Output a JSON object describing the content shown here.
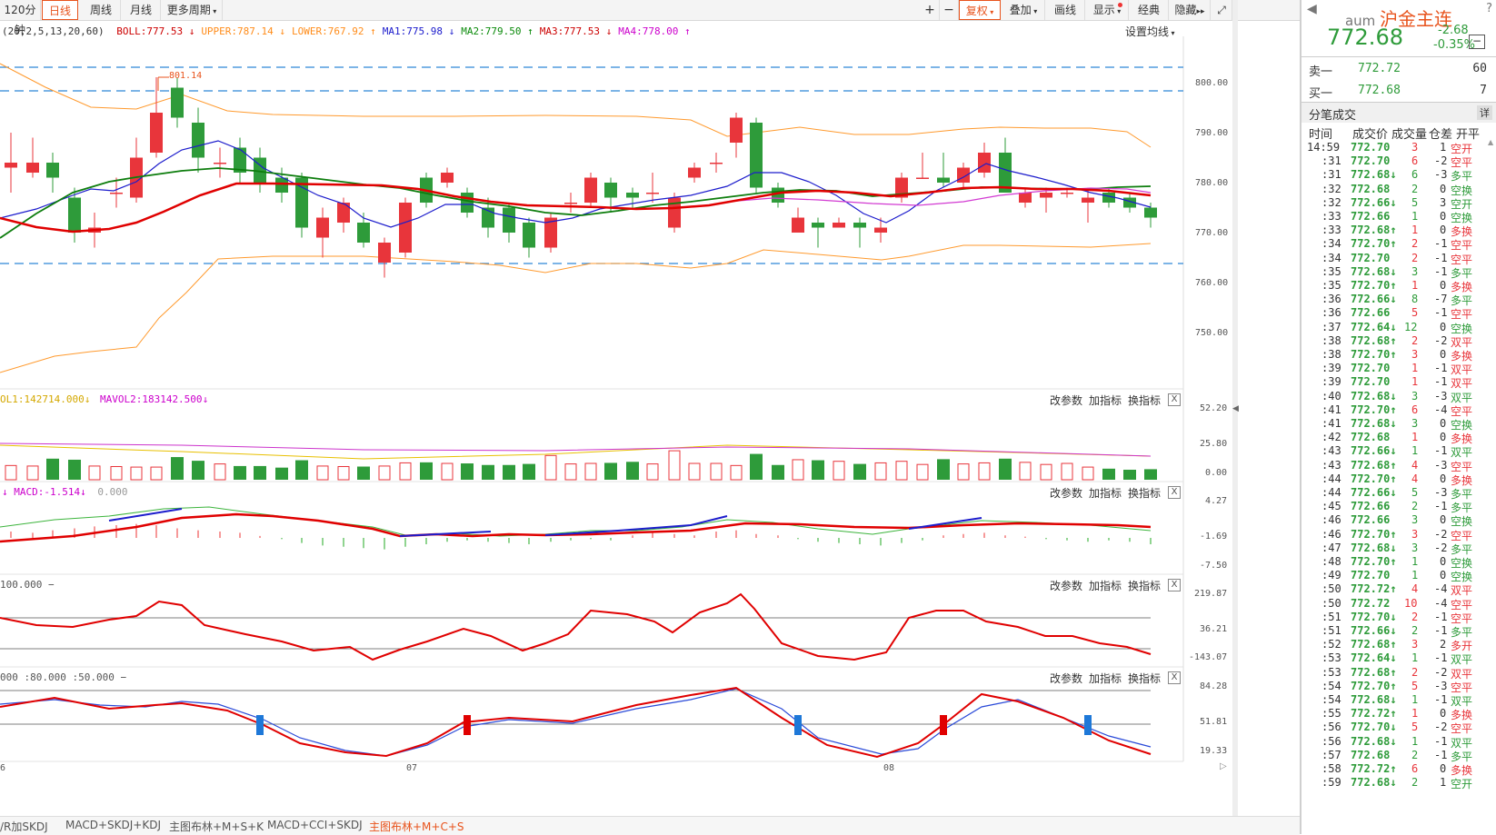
{
  "toolbar": {
    "period_partial": "120分钟",
    "tabs": [
      "日线",
      "周线",
      "月线"
    ],
    "active_tab": "日线",
    "more_periods": "更多周期",
    "right_buttons": [
      "复权",
      "叠加",
      "画线",
      "显示",
      "经典",
      "隐藏"
    ]
  },
  "main_indicator": {
    "params": "(20,2,5,13,20,60)",
    "items": [
      {
        "label": "BOLL:777.53",
        "arrow": "↓",
        "color": "#cc0000"
      },
      {
        "label": "UPPER:787.14",
        "arrow": "↓",
        "color": "#ff8c1a"
      },
      {
        "label": "LOWER:767.92",
        "arrow": "↑",
        "color": "#ff8c1a"
      },
      {
        "label": "MA1:775.98",
        "arrow": "↓",
        "color": "#1a1acc"
      },
      {
        "label": "MA2:779.50",
        "arrow": "↑",
        "color": "#0a8a0a"
      },
      {
        "label": "MA3:777.53",
        "arrow": "↓",
        "color": "#cc0000"
      },
      {
        "label": "MA4:778.00",
        "arrow": "↑",
        "color": "#cc00cc"
      }
    ],
    "settings": "设置均线",
    "price_axis": [
      "800.00",
      "790.00",
      "780.00",
      "770.00",
      "760.00",
      "750.00"
    ],
    "max_marker": "801.14"
  },
  "panels": {
    "buttons": [
      "改参数",
      "加指标",
      "换指标"
    ],
    "close": "X",
    "vol": {
      "legend": [
        {
          "label": "OL1:142714.000",
          "arrow": "↓",
          "color": "#d4a800"
        },
        {
          "label": "MAVOL2:183142.500",
          "arrow": "↓",
          "color": "#cc00cc"
        }
      ],
      "axis": [
        "52.20",
        "25.80",
        "0.00"
      ]
    },
    "macd": {
      "legend": [
        {
          "label": "MACD:-1.514",
          "arrow": "↓",
          "color": "#cc00cc"
        },
        {
          "label": "0.000",
          "arrow": "",
          "color": "#999999"
        }
      ],
      "lead_arrow": "↓",
      "axis": [
        "4.27",
        "-1.69",
        "-7.50"
      ]
    },
    "cci": {
      "legend_text": "100.000",
      "axis": [
        "219.87",
        "36.21",
        "-143.07"
      ]
    },
    "kdj": {
      "legend_text": "000  :80.000  :50.000",
      "axis": [
        "84.28",
        "51.81",
        "19.33"
      ]
    }
  },
  "date_labels": [
    "6",
    "07",
    "08"
  ],
  "bottom_tabs": [
    "/R加SKDJ",
    "MACD+SKDJ+KDJ",
    "主图布林+M+S+K",
    "MACD+CCI+SKDJ",
    "主图布林+M+C+S"
  ],
  "active_bottom_tab": "主图布林+M+C+S",
  "quote": {
    "code": "aum",
    "name": "沪金主连",
    "price": "772.68",
    "change": "-2.68",
    "change_pct": "-0.35%",
    "sell_label": "卖一",
    "sell_price": "772.72",
    "sell_vol": "60",
    "buy_label": "买一",
    "buy_price": "772.68",
    "buy_vol": "7"
  },
  "trades": {
    "title": "分笔成交",
    "detail": "详",
    "headers": [
      "时间",
      "成交价",
      "成交量",
      "仓差",
      "开平"
    ],
    "rows": [
      [
        "14:59",
        "772.70",
        "",
        "3",
        "1",
        "空开",
        "r"
      ],
      [
        ":31",
        "772.70",
        "",
        "6",
        "-2",
        "空平",
        "r"
      ],
      [
        ":31",
        "772.68",
        "↓",
        "6",
        "-3",
        "多平",
        "g"
      ],
      [
        ":32",
        "772.68",
        "",
        "2",
        "0",
        "空换",
        "g"
      ],
      [
        ":32",
        "772.66",
        "↓",
        "5",
        "3",
        "空开",
        "g"
      ],
      [
        ":33",
        "772.66",
        "",
        "1",
        "0",
        "空换",
        "g"
      ],
      [
        ":33",
        "772.68",
        "↑",
        "1",
        "0",
        "多换",
        "r"
      ],
      [
        ":34",
        "772.70",
        "↑",
        "2",
        "-1",
        "空平",
        "r"
      ],
      [
        ":34",
        "772.70",
        "",
        "2",
        "-1",
        "空平",
        "r"
      ],
      [
        ":35",
        "772.68",
        "↓",
        "3",
        "-1",
        "多平",
        "g"
      ],
      [
        ":35",
        "772.70",
        "↑",
        "1",
        "0",
        "多换",
        "r"
      ],
      [
        ":36",
        "772.66",
        "↓",
        "8",
        "-7",
        "多平",
        "g"
      ],
      [
        ":36",
        "772.66",
        "",
        "5",
        "-1",
        "空平",
        "r"
      ],
      [
        ":37",
        "772.64",
        "↓",
        "12",
        "0",
        "空换",
        "g"
      ],
      [
        ":38",
        "772.68",
        "↑",
        "2",
        "-2",
        "双平",
        "r"
      ],
      [
        ":38",
        "772.70",
        "↑",
        "3",
        "0",
        "多换",
        "r"
      ],
      [
        ":39",
        "772.70",
        "",
        "1",
        "-1",
        "双平",
        "r"
      ],
      [
        ":39",
        "772.70",
        "",
        "1",
        "-1",
        "双平",
        "r"
      ],
      [
        ":40",
        "772.68",
        "↓",
        "3",
        "-3",
        "双平",
        "g"
      ],
      [
        ":41",
        "772.70",
        "↑",
        "6",
        "-4",
        "空平",
        "r"
      ],
      [
        ":41",
        "772.68",
        "↓",
        "3",
        "0",
        "空换",
        "g"
      ],
      [
        ":42",
        "772.68",
        "",
        "1",
        "0",
        "多换",
        "r"
      ],
      [
        ":43",
        "772.66",
        "↓",
        "1",
        "-1",
        "双平",
        "g"
      ],
      [
        ":43",
        "772.68",
        "↑",
        "4",
        "-3",
        "空平",
        "r"
      ],
      [
        ":44",
        "772.70",
        "↑",
        "4",
        "0",
        "多换",
        "r"
      ],
      [
        ":44",
        "772.66",
        "↓",
        "5",
        "-3",
        "多平",
        "g"
      ],
      [
        ":45",
        "772.66",
        "",
        "2",
        "-1",
        "多平",
        "g"
      ],
      [
        ":46",
        "772.66",
        "",
        "3",
        "0",
        "空换",
        "g"
      ],
      [
        ":46",
        "772.70",
        "↑",
        "3",
        "-2",
        "空平",
        "r"
      ],
      [
        ":47",
        "772.68",
        "↓",
        "3",
        "-2",
        "多平",
        "g"
      ],
      [
        ":48",
        "772.70",
        "↑",
        "1",
        "0",
        "空换",
        "g"
      ],
      [
        ":49",
        "772.70",
        "",
        "1",
        "0",
        "空换",
        "g"
      ],
      [
        ":50",
        "772.72",
        "↑",
        "4",
        "-4",
        "双平",
        "r"
      ],
      [
        ":50",
        "772.72",
        "",
        "10",
        "-4",
        "空平",
        "r"
      ],
      [
        ":51",
        "772.70",
        "↓",
        "2",
        "-1",
        "空平",
        "r"
      ],
      [
        ":51",
        "772.66",
        "↓",
        "2",
        "-1",
        "多平",
        "g"
      ],
      [
        ":52",
        "772.68",
        "↑",
        "3",
        "2",
        "多开",
        "r"
      ],
      [
        ":53",
        "772.64",
        "↓",
        "1",
        "-1",
        "双平",
        "g"
      ],
      [
        ":53",
        "772.68",
        "↑",
        "2",
        "-2",
        "双平",
        "r"
      ],
      [
        ":54",
        "772.70",
        "↑",
        "5",
        "-3",
        "空平",
        "r"
      ],
      [
        ":54",
        "772.68",
        "↓",
        "1",
        "-1",
        "双平",
        "g"
      ],
      [
        ":55",
        "772.72",
        "↑",
        "1",
        "0",
        "多换",
        "r"
      ],
      [
        ":56",
        "772.70",
        "↓",
        "5",
        "-2",
        "空平",
        "r"
      ],
      [
        ":56",
        "772.68",
        "↓",
        "1",
        "-1",
        "双平",
        "g"
      ],
      [
        ":57",
        "772.68",
        "",
        "2",
        "-1",
        "多平",
        "g"
      ],
      [
        ":58",
        "772.72",
        "↑",
        "6",
        "0",
        "多换",
        "r"
      ],
      [
        ":59",
        "772.68",
        "↓",
        "2",
        "1",
        "空开",
        "g"
      ]
    ]
  },
  "colors": {
    "up": "#e8353b",
    "down": "#2e9b3a",
    "accent": "#e8531c",
    "ma_red": "#e00000",
    "boll_band": "#ff9a2e",
    "ma_blue": "#1c1ccc",
    "ma_green": "#0d7d0d",
    "ma_purple": "#d23ad2"
  }
}
